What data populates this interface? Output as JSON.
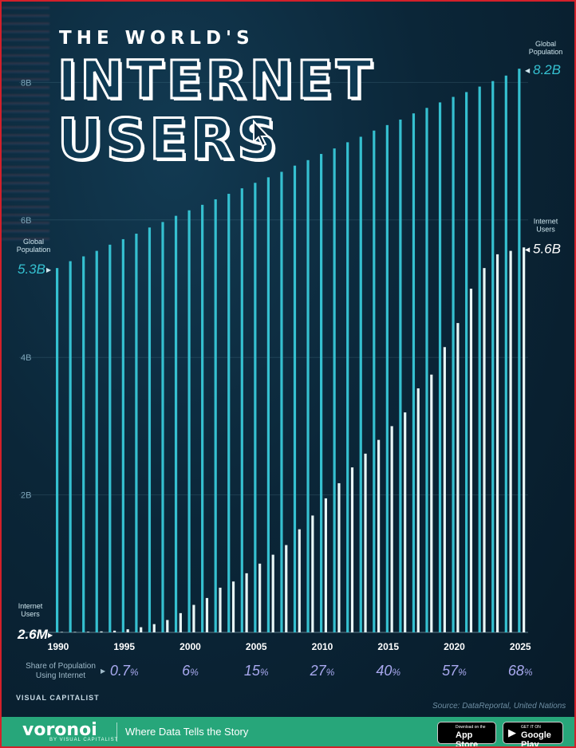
{
  "title": {
    "line1": "THE WORLD'S",
    "line2": "INTERNET",
    "line3": "USERS"
  },
  "chart_data": {
    "type": "bar",
    "title": "THE WORLD'S INTERNET USERS",
    "x": [
      1990,
      1991,
      1992,
      1993,
      1994,
      1995,
      1996,
      1997,
      1998,
      1999,
      2000,
      2001,
      2002,
      2003,
      2004,
      2005,
      2006,
      2007,
      2008,
      2009,
      2010,
      2011,
      2012,
      2013,
      2014,
      2015,
      2016,
      2017,
      2018,
      2019,
      2020,
      2021,
      2022,
      2023,
      2024,
      2025
    ],
    "x_tick_labels": [
      "1990",
      "1995",
      "2000",
      "2005",
      "2010",
      "2015",
      "2020",
      "2025"
    ],
    "y_tick_labels": [
      "2B",
      "4B",
      "6B",
      "8B"
    ],
    "ylim": [
      0,
      8.4
    ],
    "series": [
      {
        "name": "Global Population",
        "color": "#35c0d0",
        "values": [
          5.3,
          5.4,
          5.47,
          5.55,
          5.64,
          5.72,
          5.8,
          5.89,
          5.97,
          6.06,
          6.14,
          6.22,
          6.3,
          6.38,
          6.46,
          6.54,
          6.62,
          6.7,
          6.79,
          6.87,
          6.96,
          7.04,
          7.13,
          7.21,
          7.3,
          7.38,
          7.46,
          7.55,
          7.63,
          7.71,
          7.79,
          7.86,
          7.94,
          8.02,
          8.1,
          8.2
        ]
      },
      {
        "name": "Internet Users",
        "color": "#e8f6f6",
        "values": [
          0.0026,
          0.004,
          0.009,
          0.014,
          0.025,
          0.045,
          0.075,
          0.12,
          0.18,
          0.28,
          0.4,
          0.5,
          0.65,
          0.74,
          0.86,
          1.0,
          1.13,
          1.27,
          1.5,
          1.7,
          1.95,
          2.17,
          2.4,
          2.6,
          2.8,
          3.0,
          3.2,
          3.55,
          3.75,
          4.15,
          4.5,
          5.0,
          5.3,
          5.5,
          5.55,
          5.6
        ]
      }
    ],
    "annotations": {
      "global_start_label": "Global Population",
      "global_start_value": "5.3B",
      "global_end_label": "Global Population",
      "global_end_value": "8.2B",
      "users_start_label": "Internet Users",
      "users_start_value": "2.6M",
      "users_end_label": "Internet Users",
      "users_end_value": "5.6B"
    },
    "share_row": {
      "label_line1": "Share of Population",
      "label_line2": "Using Internet",
      "values": [
        {
          "year": "1995",
          "num": "0.7",
          "pct": "%"
        },
        {
          "year": "2000",
          "num": "6",
          "pct": "%"
        },
        {
          "year": "2005",
          "num": "15",
          "pct": "%"
        },
        {
          "year": "2010",
          "num": "27",
          "pct": "%"
        },
        {
          "year": "2015",
          "num": "40",
          "pct": "%"
        },
        {
          "year": "2020",
          "num": "57",
          "pct": "%"
        },
        {
          "year": "2025",
          "num": "68",
          "pct": "%"
        }
      ]
    }
  },
  "branding": {
    "vc_logo": "VISUAL CAPITALIST",
    "source": "Source: DataReportal, United Nations",
    "brand": "voronoi",
    "brand_sub": "BY VISUAL CAPITALIST",
    "tagline": "Where Data Tells the Story",
    "appstore_small": "Download on the",
    "appstore_big": "App Store",
    "googleplay_small": "GET IT ON",
    "googleplay_big": "Google Play"
  }
}
